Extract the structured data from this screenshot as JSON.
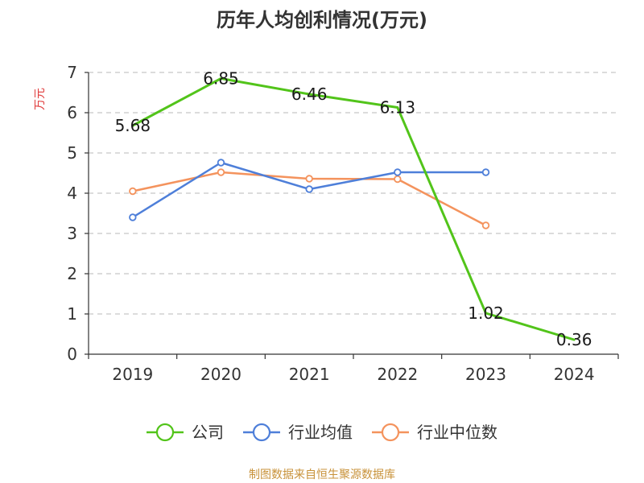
{
  "chart_data": {
    "type": "line",
    "title": "历年人均创利情况(万元)",
    "ylabel": "万元",
    "xlabel": "",
    "ylim": [
      0,
      7
    ],
    "yticks": [
      "0",
      "1",
      "2",
      "3",
      "4",
      "5",
      "6",
      "7"
    ],
    "categories": [
      "2019",
      "2020",
      "2021",
      "2022",
      "2023",
      "2024"
    ],
    "grid": true,
    "legend_position": "bottom",
    "series": [
      {
        "name": "公司",
        "color": "#52c41a",
        "values": [
          5.68,
          6.85,
          6.46,
          6.13,
          1.02,
          0.36
        ],
        "labels": [
          "5.68",
          "6.85",
          "6.46",
          "6.13",
          "1.02",
          "0.36"
        ],
        "show_markers": false
      },
      {
        "name": "行业均值",
        "color": "#4e7fd9",
        "values": [
          3.4,
          4.76,
          4.1,
          4.52,
          4.52,
          null
        ],
        "show_markers": true
      },
      {
        "name": "行业中位数",
        "color": "#f4935d",
        "values": [
          4.05,
          4.52,
          4.36,
          4.35,
          3.2,
          null
        ],
        "show_markers": true
      }
    ],
    "ylabel_color": "#e03a3a"
  },
  "source": {
    "text": "制图数据来自恒生聚源数据库",
    "color": "#c8923a"
  }
}
